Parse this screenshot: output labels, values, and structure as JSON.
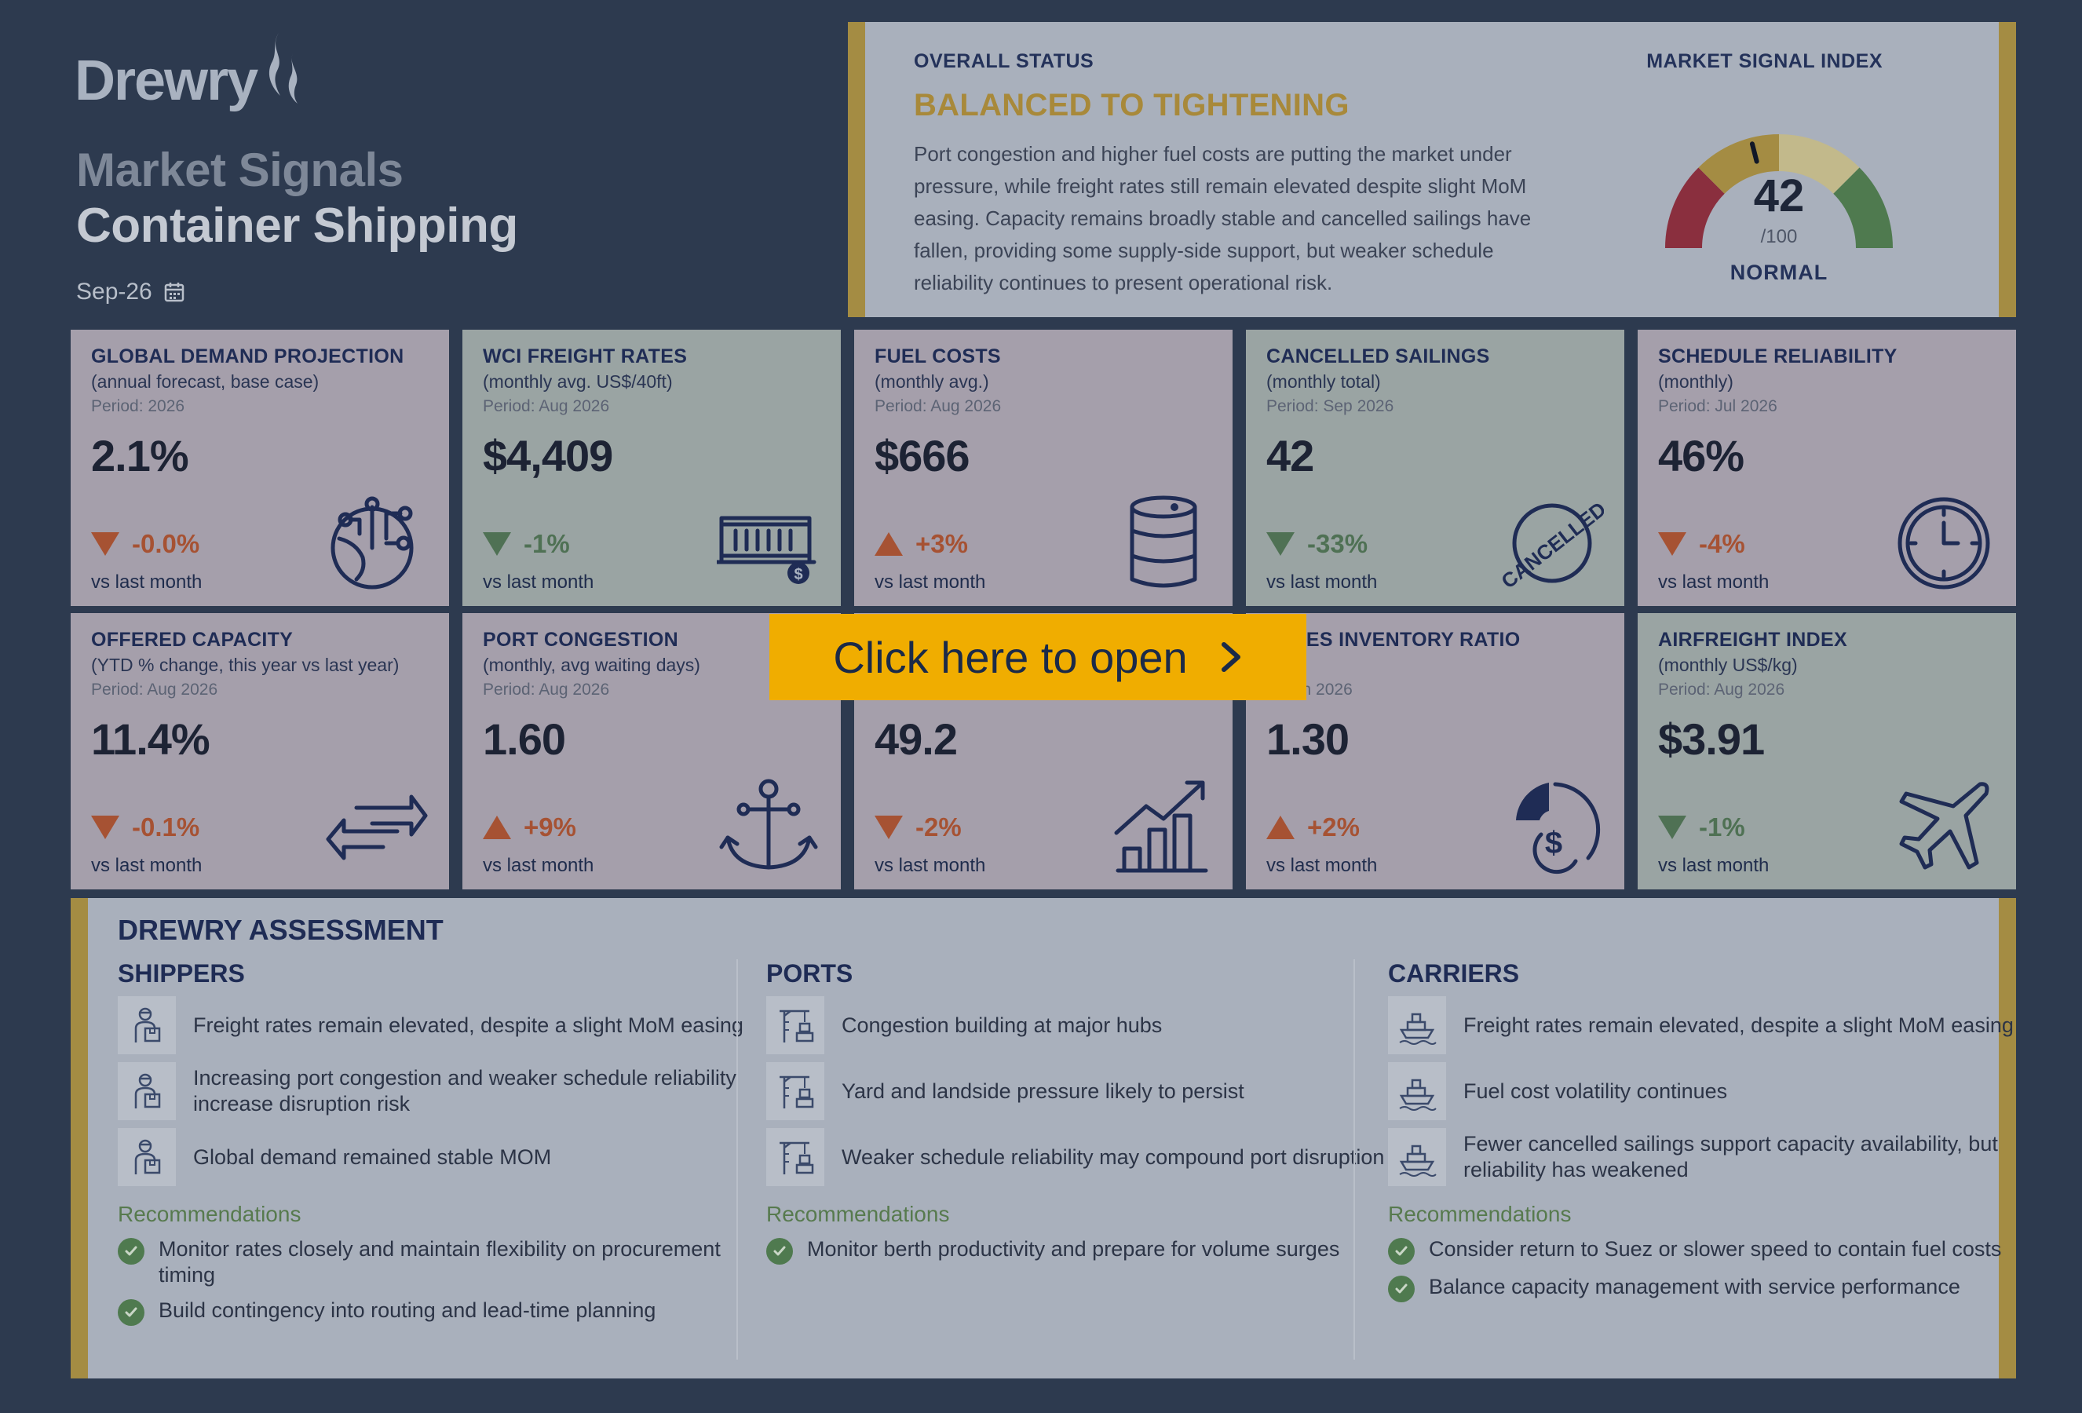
{
  "brand": {
    "logo_text": "Drewry"
  },
  "header": {
    "title_line1": "Market Signals",
    "title_line2": "Container Shipping",
    "date": "Sep-26"
  },
  "status": {
    "label": "OVERALL STATUS",
    "headline": "BALANCED TO TIGHTENING",
    "description": "Port congestion and higher fuel costs are putting the market under pressure, while freight rates still remain elevated despite slight MoM easing. Capacity remains broadly stable and cancelled sailings have fallen, providing some supply-side support, but weaker schedule reliability continues to present operational risk.",
    "index_label": "MARKET SIGNAL INDEX",
    "index_value": "42",
    "index_max": "/100",
    "index_state": "NORMAL",
    "index_fraction": 0.42,
    "gauge_colors": [
      "#8a2f3e",
      "#a48c43",
      "#c2b98b",
      "#4f7a4f"
    ]
  },
  "cards": [
    {
      "title": "GLOBAL DEMAND PROJECTION",
      "subtitle": "(annual forecast, base case)",
      "period": "Period: 2026",
      "value": "2.1%",
      "change": "-0.0%",
      "direction": "down",
      "tone": "neg",
      "compare": "vs last month",
      "icon": "globe-circuit-icon"
    },
    {
      "title": "WCI FREIGHT RATES",
      "subtitle": "(monthly avg. US$/40ft)",
      "period": "Period: Aug 2026",
      "value": "$4,409",
      "change": "-1%",
      "direction": "down",
      "tone": "pos",
      "compare": "vs last month",
      "icon": "container-icon"
    },
    {
      "title": "FUEL COSTS",
      "subtitle": "(monthly avg.)",
      "period": "Period: Aug 2026",
      "value": "$666",
      "change": "+3%",
      "direction": "up",
      "tone": "neg",
      "compare": "vs last month",
      "icon": "oil-barrel-icon"
    },
    {
      "title": "CANCELLED SAILINGS",
      "subtitle": "(monthly total)",
      "period": "Period: Sep 2026",
      "value": "42",
      "change": "-33%",
      "direction": "down",
      "tone": "pos",
      "compare": "vs last month",
      "icon": "cancelled-stamp-icon",
      "stamp_text": "CANCELLED"
    },
    {
      "title": "SCHEDULE RELIABILITY",
      "subtitle": "(monthly)",
      "period": "Period: Jul 2026",
      "value": "46%",
      "change": "-4%",
      "direction": "down",
      "tone": "neg",
      "compare": "vs last month",
      "icon": "clock-icon"
    },
    {
      "title": "OFFERED CAPACITY",
      "subtitle": "(YTD % change, this year vs last year)",
      "period": "Period: Aug 2026",
      "value": "11.4%",
      "change": "-0.1%",
      "direction": "down",
      "tone": "neg",
      "compare": "vs last month",
      "icon": "arrows-icon"
    },
    {
      "title": "PORT CONGESTION",
      "subtitle": "(monthly, avg waiting days)",
      "period": "Period: Aug 2026",
      "value": "1.60",
      "change": "+9%",
      "direction": "up",
      "tone": "neg",
      "compare": "vs last month",
      "icon": "anchor-icon"
    },
    {
      "title": "",
      "subtitle": "",
      "period": "",
      "value": "49.2",
      "change": "-2%",
      "direction": "down",
      "tone": "neg",
      "compare": "vs last month",
      "icon": "growth-chart-icon"
    },
    {
      "title": "SALES INVENTORY RATIO",
      "subtitle": "thly)",
      "period": "d: Jun 2026",
      "value": "1.30",
      "change": "+2%",
      "direction": "up",
      "tone": "neg",
      "compare": "vs last month",
      "icon": "dollar-gauge-icon"
    },
    {
      "title": "AIRFREIGHT INDEX",
      "subtitle": "(monthly US$/kg)",
      "period": "Period: Aug 2026",
      "value": "$3.91",
      "change": "-1%",
      "direction": "down",
      "tone": "pos",
      "compare": "vs last month",
      "icon": "airplane-icon"
    }
  ],
  "overlay": {
    "label": "Click here to open",
    "icon": "chevron-right-icon"
  },
  "assessment": {
    "title": "DREWRY ASSESSMENT",
    "columns": [
      {
        "heading": "SHIPPERS",
        "icon": "worker-box-icon",
        "items": [
          "Freight rates remain elevated, despite a slight MoM easing",
          "Increasing port congestion and weaker schedule reliability increase disruption risk",
          "Global demand remained stable MOM"
        ],
        "rec_label": "Recommendations",
        "recs": [
          "Monitor rates closely and maintain flexibility on procurement timing",
          "Build contingency into routing and lead-time planning"
        ]
      },
      {
        "heading": "PORTS",
        "icon": "crane-icon",
        "items": [
          "Congestion building at major hubs",
          "Yard and landside pressure likely to persist",
          "Weaker schedule reliability may compound port disruption"
        ],
        "rec_label": "Recommendations",
        "recs": [
          "Monitor berth productivity and prepare for volume surges"
        ]
      },
      {
        "heading": "CARRIERS",
        "icon": "ship-icon",
        "items": [
          "Freight rates remain elevated, despite a slight MoM easing",
          "Fuel cost volatility continues",
          "Fewer cancelled sailings support capacity availability, but reliability has weakened"
        ],
        "rec_label": "Recommendations",
        "recs": [
          "Consider return to Suez or slower speed to contain fuel costs",
          "Balance capacity management with service performance"
        ]
      }
    ]
  },
  "colors": {
    "background": "#2d3a4f",
    "accent_gold": "#a48c43",
    "negative": "#a65233",
    "positive": "#4f7154",
    "button": "#f0ad00"
  }
}
